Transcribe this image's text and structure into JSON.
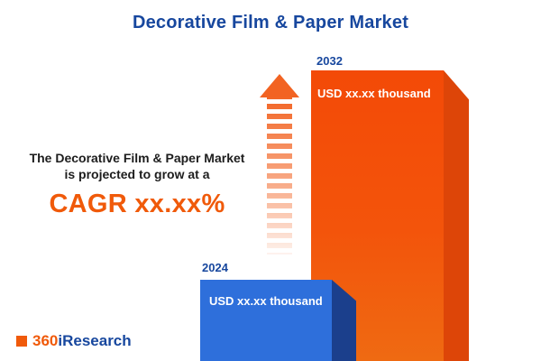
{
  "title": "Decorative Film & Paper Market",
  "promo": {
    "line1": "The Decorative Film & Paper Market",
    "line2": "is projected to grow at a",
    "cagr": "CAGR xx.xx%"
  },
  "bars": {
    "y2024": {
      "year": "2024",
      "value": "USD xx.xx thousand"
    },
    "y2032": {
      "year": "2032",
      "value": "USD xx.xx thousand"
    }
  },
  "logo": {
    "number": "360",
    "name": "iResearch"
  },
  "colors": {
    "brand_blue": "#17479E",
    "accent_orange": "#F0500A",
    "bar_blue_front": "#2E6FDB",
    "bar_blue_side": "#1B3F8C",
    "bar_orange_front": "#F3500B",
    "bar_orange_side": "#DD4508"
  },
  "chart_data": {
    "type": "bar",
    "categories": [
      "2024",
      "2032"
    ],
    "values": [
      null,
      null
    ],
    "value_labels": [
      "USD xx.xx thousand",
      "USD xx.xx thousand"
    ],
    "title": "Decorative Film & Paper Market",
    "xlabel": "",
    "ylabel": "",
    "ylim": null,
    "grid": false,
    "legend": false,
    "annotations": [
      "The Decorative Film & Paper Market is projected to grow at a",
      "CAGR xx.xx%"
    ],
    "notes": "3D-style infographic bar chart; 2024 bar blue (short), 2032 bar orange (tall), dashed upward arrow between them indicating growth"
  }
}
